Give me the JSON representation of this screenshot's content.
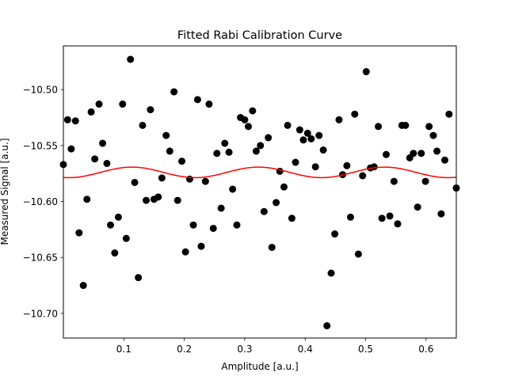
{
  "chart_data": {
    "type": "scatter",
    "title": "Fitted Rabi Calibration Curve",
    "xlabel": "Amplitude [a.u.]",
    "ylabel": "Measured Signal [a.u.]",
    "xlim": [
      0.0,
      0.65
    ],
    "ylim": [
      -10.722,
      -10.461
    ],
    "xticks": [
      {
        "value": 0.1,
        "label": "0.1"
      },
      {
        "value": 0.2,
        "label": "0.2"
      },
      {
        "value": 0.3,
        "label": "0.3"
      },
      {
        "value": 0.4,
        "label": "0.4"
      },
      {
        "value": 0.5,
        "label": "0.5"
      },
      {
        "value": 0.6,
        "label": "0.6"
      }
    ],
    "yticks": [
      {
        "value": -10.5,
        "label": "−10.50"
      },
      {
        "value": -10.55,
        "label": "−10.55"
      },
      {
        "value": -10.6,
        "label": "−10.60"
      },
      {
        "value": -10.65,
        "label": "−10.65"
      },
      {
        "value": -10.7,
        "label": "−10.70"
      }
    ],
    "grid": false,
    "colors": {
      "points": "#000000",
      "fit": "#ff0000"
    },
    "series": [
      {
        "kind": "scatter",
        "marker": "circle",
        "points": [
          [
            0.0,
            -10.567
          ],
          [
            0.007,
            -10.527
          ],
          [
            0.013,
            -10.553
          ],
          [
            0.02,
            -10.528
          ],
          [
            0.026,
            -10.628
          ],
          [
            0.033,
            -10.675
          ],
          [
            0.039,
            -10.598
          ],
          [
            0.046,
            -10.52
          ],
          [
            0.052,
            -10.562
          ],
          [
            0.059,
            -10.513
          ],
          [
            0.065,
            -10.548
          ],
          [
            0.072,
            -10.566
          ],
          [
            0.078,
            -10.621
          ],
          [
            0.085,
            -10.646
          ],
          [
            0.091,
            -10.614
          ],
          [
            0.098,
            -10.513
          ],
          [
            0.104,
            -10.633
          ],
          [
            0.111,
            -10.473
          ],
          [
            0.118,
            -10.583
          ],
          [
            0.124,
            -10.668
          ],
          [
            0.131,
            -10.532
          ],
          [
            0.137,
            -10.599
          ],
          [
            0.144,
            -10.518
          ],
          [
            0.15,
            -10.598
          ],
          [
            0.157,
            -10.596
          ],
          [
            0.163,
            -10.579
          ],
          [
            0.17,
            -10.541
          ],
          [
            0.176,
            -10.555
          ],
          [
            0.183,
            -10.502
          ],
          [
            0.189,
            -10.599
          ],
          [
            0.196,
            -10.564
          ],
          [
            0.202,
            -10.645
          ],
          [
            0.209,
            -10.58
          ],
          [
            0.215,
            -10.621
          ],
          [
            0.222,
            -10.509
          ],
          [
            0.228,
            -10.64
          ],
          [
            0.235,
            -10.582
          ],
          [
            0.241,
            -10.513
          ],
          [
            0.248,
            -10.624
          ],
          [
            0.254,
            -10.557
          ],
          [
            0.261,
            -10.606
          ],
          [
            0.267,
            -10.548
          ],
          [
            0.274,
            -10.556
          ],
          [
            0.28,
            -10.589
          ],
          [
            0.287,
            -10.621
          ],
          [
            0.293,
            -10.525
          ],
          [
            0.3,
            -10.527
          ],
          [
            0.306,
            -10.533
          ],
          [
            0.313,
            -10.519
          ],
          [
            0.319,
            -10.555
          ],
          [
            0.326,
            -10.55
          ],
          [
            0.332,
            -10.609
          ],
          [
            0.339,
            -10.543
          ],
          [
            0.345,
            -10.641
          ],
          [
            0.352,
            -10.601
          ],
          [
            0.358,
            -10.573
          ],
          [
            0.365,
            -10.587
          ],
          [
            0.371,
            -10.532
          ],
          [
            0.378,
            -10.615
          ],
          [
            0.384,
            -10.565
          ],
          [
            0.391,
            -10.536
          ],
          [
            0.397,
            -10.545
          ],
          [
            0.404,
            -10.539
          ],
          [
            0.41,
            -10.544
          ],
          [
            0.417,
            -10.569
          ],
          [
            0.423,
            -10.541
          ],
          [
            0.43,
            -10.554
          ],
          [
            0.436,
            -10.711
          ],
          [
            0.443,
            -10.664
          ],
          [
            0.449,
            -10.629
          ],
          [
            0.456,
            -10.527
          ],
          [
            0.462,
            -10.576
          ],
          [
            0.469,
            -10.568
          ],
          [
            0.475,
            -10.614
          ],
          [
            0.482,
            -10.522
          ],
          [
            0.488,
            -10.647
          ],
          [
            0.495,
            -10.577
          ],
          [
            0.501,
            -10.484
          ],
          [
            0.508,
            -10.57
          ],
          [
            0.514,
            -10.569
          ],
          [
            0.521,
            -10.533
          ],
          [
            0.527,
            -10.615
          ],
          [
            0.534,
            -10.558
          ],
          [
            0.54,
            -10.613
          ],
          [
            0.547,
            -10.582
          ],
          [
            0.553,
            -10.62
          ],
          [
            0.56,
            -10.532
          ],
          [
            0.566,
            -10.532
          ],
          [
            0.573,
            -10.561
          ],
          [
            0.579,
            -10.557
          ],
          [
            0.586,
            -10.605
          ],
          [
            0.592,
            -10.557
          ],
          [
            0.599,
            -10.582
          ],
          [
            0.605,
            -10.533
          ],
          [
            0.612,
            -10.541
          ],
          [
            0.618,
            -10.555
          ],
          [
            0.625,
            -10.611
          ],
          [
            0.631,
            -10.563
          ],
          [
            0.638,
            -10.522
          ],
          [
            0.65,
            -10.588
          ]
        ]
      },
      {
        "kind": "line",
        "function": "sine",
        "offset": -10.574,
        "amplitude": 0.0047,
        "period": 0.209,
        "phase": -1.84,
        "x_range": [
          0.0,
          0.65
        ]
      }
    ]
  }
}
